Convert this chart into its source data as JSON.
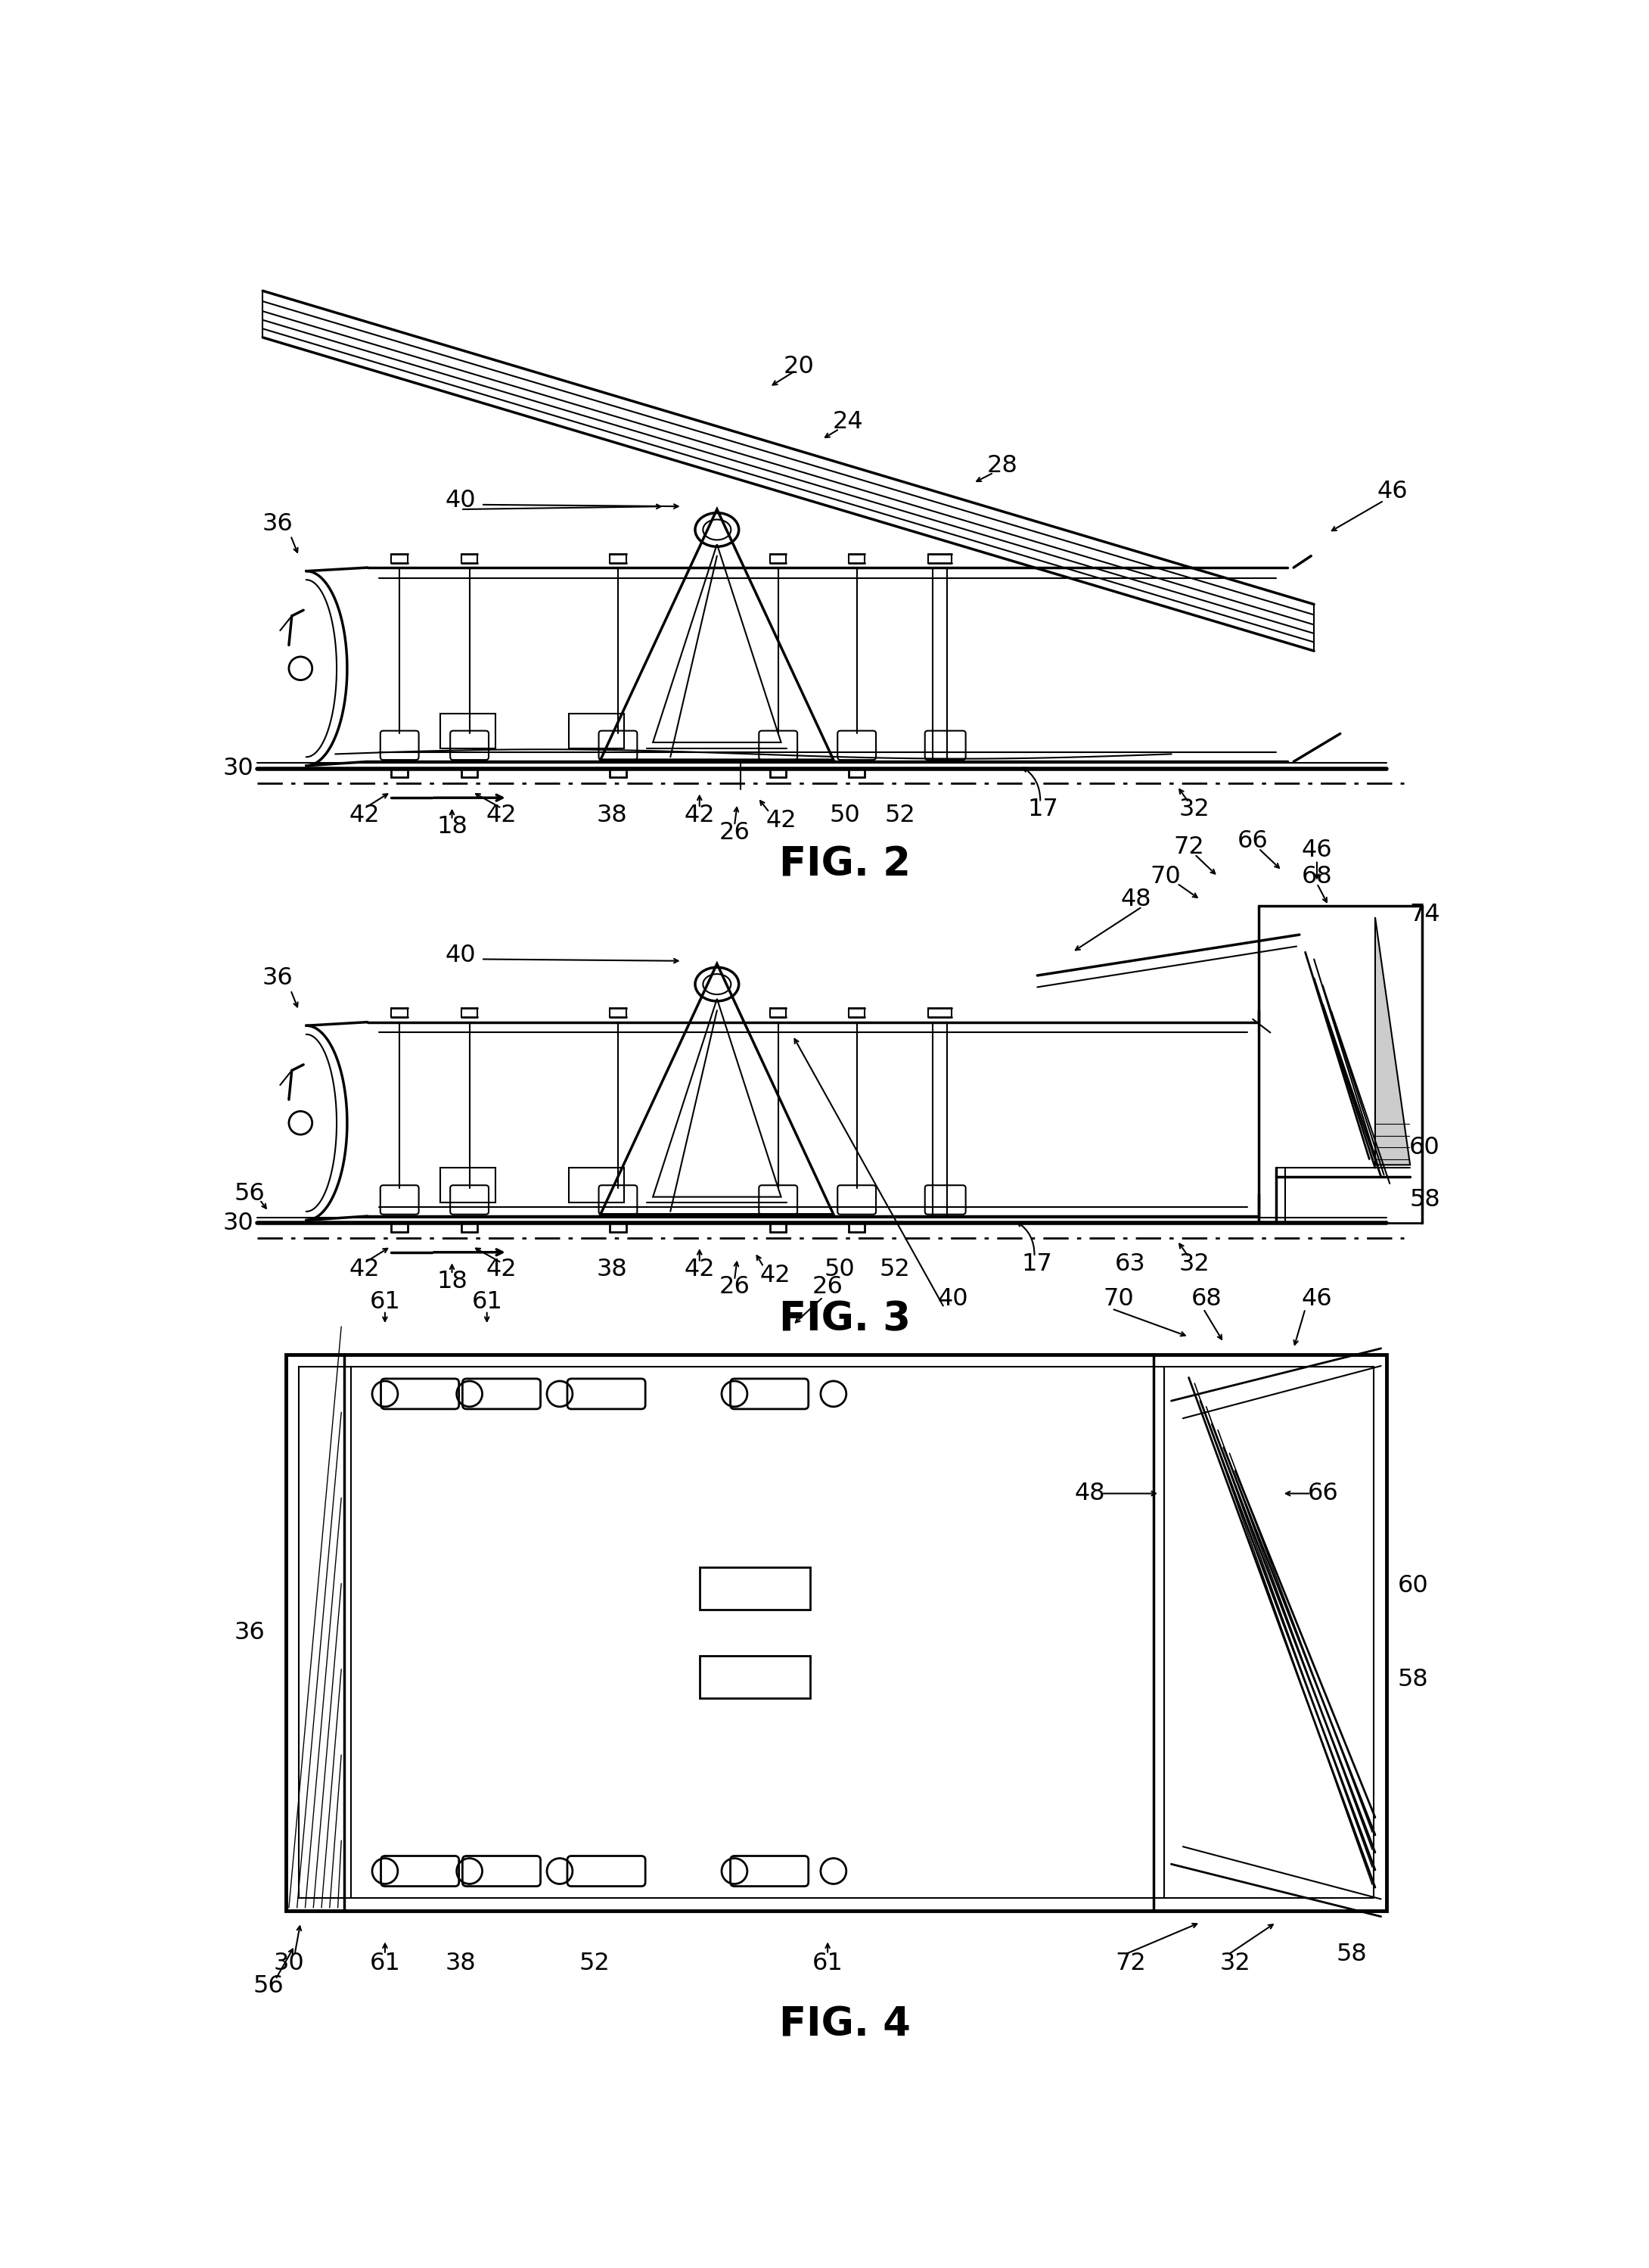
{
  "bg": "#ffffff",
  "lc": "#000000",
  "fig2_label": "FIG. 2",
  "fig3_label": "FIG. 3",
  "fig4_label": "FIG. 4",
  "fs": 23,
  "fs_fig": 38
}
